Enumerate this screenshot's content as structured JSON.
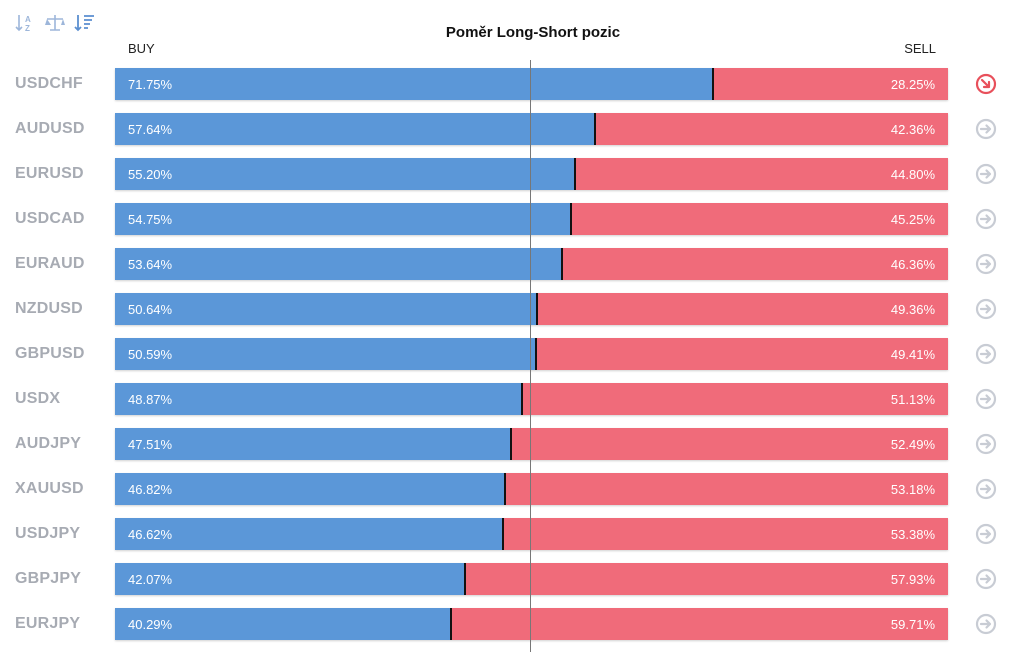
{
  "toolbar": {
    "icons": [
      "sort-alpha-icon",
      "scale-balance-icon",
      "sort-descending-icon"
    ]
  },
  "colors": {
    "buy": "#5b97d8",
    "sell": "#f06b7a",
    "symbol_text": "#a7abb3",
    "arrow_neutral": "#c8ccd4",
    "arrow_alert": "#e8505b"
  },
  "chart_data": {
    "type": "bar",
    "orientation": "horizontal-stacked",
    "title": "Poměr Long-Short pozic",
    "xlabel": "",
    "ylabel": "",
    "xlim": [
      0,
      100
    ],
    "legend": [
      "BUY",
      "SELL"
    ],
    "categories": [
      "USDCHF",
      "AUDUSD",
      "EURUSD",
      "USDCAD",
      "EURAUD",
      "NZDUSD",
      "GBPUSD",
      "USDX",
      "AUDJPY",
      "XAUUSD",
      "USDJPY",
      "GBPJPY",
      "EURJPY"
    ],
    "series": [
      {
        "name": "BUY",
        "values": [
          71.75,
          57.64,
          55.2,
          54.75,
          53.64,
          50.64,
          50.59,
          48.87,
          47.51,
          46.82,
          46.62,
          42.07,
          40.29
        ]
      },
      {
        "name": "SELL",
        "values": [
          28.25,
          42.36,
          44.8,
          45.25,
          46.36,
          49.36,
          49.41,
          51.13,
          52.49,
          53.18,
          53.38,
          57.93,
          59.71
        ]
      }
    ],
    "labels_buy": [
      "71.75%",
      "57.64%",
      "55.20%",
      "54.75%",
      "53.64%",
      "50.64%",
      "50.59%",
      "48.87%",
      "47.51%",
      "46.82%",
      "46.62%",
      "42.07%",
      "40.29%"
    ],
    "labels_sell": [
      "28.25%",
      "42.36%",
      "44.80%",
      "45.25%",
      "46.36%",
      "49.36%",
      "49.41%",
      "51.13%",
      "52.49%",
      "53.18%",
      "53.38%",
      "57.93%",
      "59.71%"
    ],
    "row_icons": [
      "arrow-down-right-icon",
      "arrow-right-icon",
      "arrow-right-icon",
      "arrow-right-icon",
      "arrow-right-icon",
      "arrow-right-icon",
      "arrow-right-icon",
      "arrow-right-icon",
      "arrow-right-icon",
      "arrow-right-icon",
      "arrow-right-icon",
      "arrow-right-icon",
      "arrow-right-icon"
    ],
    "center_reference": 50
  }
}
